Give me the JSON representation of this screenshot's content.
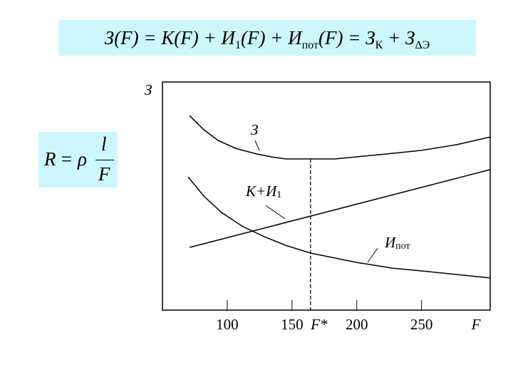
{
  "formulas": {
    "cost": [
      "З(",
      "F",
      ") = К(",
      "F",
      ") + И",
      "1",
      "(",
      "F",
      ") + И",
      "пот",
      "(",
      "F",
      ") = З",
      "К",
      " + З",
      "ΔЭ"
    ],
    "resistance": [
      "R",
      " = ρ",
      "l",
      "F"
    ]
  },
  "chart_data": {
    "type": "line",
    "y_label": "З",
    "x_label": "F",
    "xlim": [
      50,
      303
    ],
    "ylim": [
      0,
      100
    ],
    "xticks": [
      100,
      150,
      200,
      250
    ],
    "series": [
      {
        "name": "З",
        "color": "#000000",
        "x": [
          70.9,
          81.9,
          92.9,
          106.6,
          123.1,
          134.1,
          145.1,
          167,
          183.5,
          200,
          222,
          249.5,
          276.9,
          303
        ],
        "values": [
          85.3,
          79.1,
          74.4,
          70.9,
          68.4,
          67.2,
          66.3,
          66.3,
          66.3,
          67.2,
          68.4,
          70,
          72.5,
          75.9
        ]
      },
      {
        "name": "К+И",
        "subscript": "1",
        "color": "#000000",
        "x": [
          71,
          303
        ],
        "values": [
          27.5,
          61.6
        ]
      },
      {
        "name": "И",
        "subscript": "пот",
        "color": "#000000",
        "x": [
          69.8,
          81.9,
          95.6,
          112.1,
          128.6,
          145.1,
          164.3,
          183.5,
          200,
          227.5,
          254.9,
          282.4,
          303
        ],
        "values": [
          58.4,
          50,
          42.8,
          36.6,
          32.2,
          28.4,
          25,
          22.8,
          20.9,
          18.4,
          16.9,
          15.3,
          14.1
        ]
      }
    ],
    "optimum": {
      "x": 164.3,
      "label": "F*",
      "y": 66.3
    }
  }
}
